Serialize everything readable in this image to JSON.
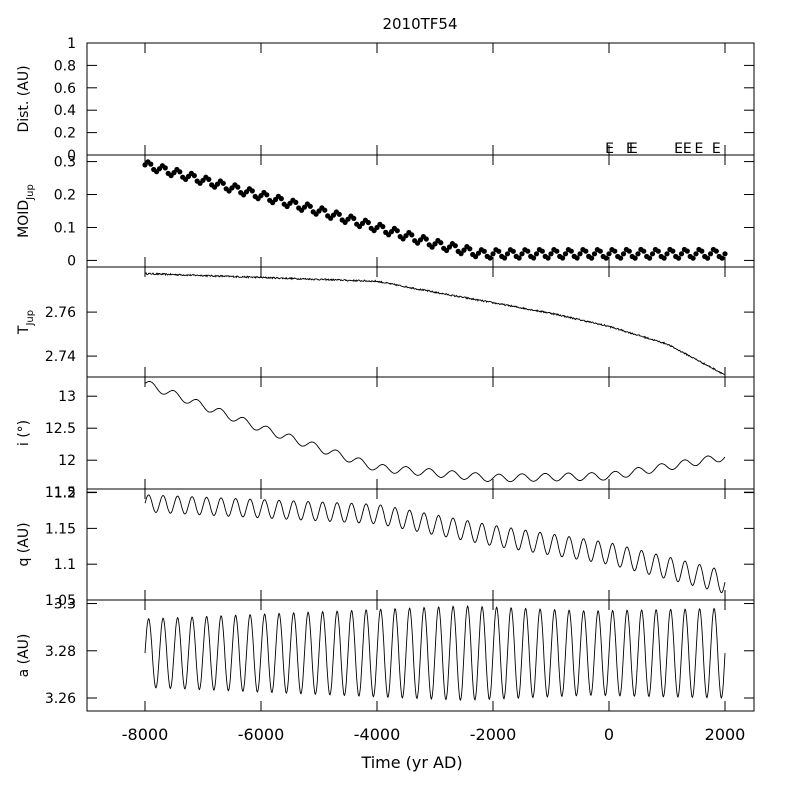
{
  "chart_data": {
    "type": "line",
    "title": "2010TF54",
    "xlabel": "Time (yr AD)",
    "xlim": [
      -9000,
      2500
    ],
    "x_ticks": [
      -8000,
      -6000,
      -4000,
      -2000,
      0,
      2000
    ],
    "x_tick_labels": [
      "-8000",
      "-6000",
      "-4000",
      "-2000",
      "0",
      "2000"
    ],
    "panels": [
      {
        "id": "dist",
        "ylabel": "Dist. (AU)",
        "ylim": [
          0,
          1
        ],
        "yticks": [
          0,
          0.2,
          0.4,
          0.6,
          0.8,
          1
        ],
        "ytick_labels": [
          "0",
          "0.2",
          "0.4",
          "0.6",
          "0.8",
          "1"
        ],
        "encounter_marker": "E",
        "encounters_x": [
          10,
          370,
          420,
          1200,
          1350,
          1550,
          1850
        ]
      },
      {
        "id": "moid",
        "ylabel_main": "MOID",
        "ylabel_sub": "Jup",
        "ylim": [
          -0.02,
          0.32
        ],
        "yticks": [
          0,
          0.1,
          0.2,
          0.3
        ],
        "ytick_labels": [
          "0",
          "0.1",
          "0.2",
          "0.3"
        ],
        "marker": "dot",
        "trend": {
          "x": [
            -8000,
            -5000,
            -3000,
            -2200,
            2000
          ],
          "y": [
            0.29,
            0.15,
            0.05,
            0.02,
            0.02
          ]
        },
        "oscillation": {
          "period": 250,
          "amp_start": 0.012,
          "amp_end": 0.014
        }
      },
      {
        "id": "tjup",
        "ylabel_main": "T",
        "ylabel_sub": "Jup",
        "ylim": [
          2.7305,
          2.7805
        ],
        "yticks": [
          2.74,
          2.76
        ],
        "ytick_labels": [
          "2.74",
          "2.76"
        ],
        "marker": "line",
        "trend": {
          "x": [
            -8000,
            -4000,
            -3000,
            -1000,
            0,
            1000,
            2000
          ],
          "y": [
            2.7775,
            2.774,
            2.769,
            2.7595,
            2.7535,
            2.7455,
            2.7315
          ]
        },
        "noise": 0.0007
      },
      {
        "id": "incl",
        "ylabel": "i (°)",
        "ylim": [
          11.55,
          13.3
        ],
        "yticks": [
          11.5,
          12,
          12.5,
          13
        ],
        "ytick_labels": [
          "11.5",
          "12",
          "12.5",
          "13"
        ],
        "marker": "line",
        "trend": {
          "x": [
            -8000,
            -6000,
            -4000,
            -2000,
            0,
            2000
          ],
          "y": [
            13.2,
            12.5,
            11.88,
            11.72,
            11.75,
            12.05
          ]
        },
        "oscillation": {
          "period": 400,
          "amp_start": 0.06,
          "amp_end": 0.06
        }
      },
      {
        "id": "q",
        "ylabel": "q (AU)",
        "ylim": [
          1.05,
          1.205
        ],
        "yticks": [
          1.05,
          1.1,
          1.15,
          1.2
        ],
        "ytick_labels": [
          "1.05",
          "1.1",
          "1.15",
          "1.2"
        ],
        "marker": "line",
        "trend": {
          "x": [
            -8000,
            -4000,
            -2000,
            0,
            2000
          ],
          "y": [
            1.185,
            1.17,
            1.14,
            1.115,
            1.075
          ]
        },
        "oscillation": {
          "period": 250,
          "amp_start": 0.012,
          "amp_end": 0.016
        }
      },
      {
        "id": "a",
        "ylabel": "a (AU)",
        "ylim": [
          3.2545,
          3.3015
        ],
        "yticks": [
          3.26,
          3.28,
          3.3
        ],
        "ytick_labels": [
          "3.26",
          "3.28",
          "3.3"
        ],
        "marker": "line",
        "trend": {
          "x": [
            -8000,
            2000
          ],
          "y": [
            3.279,
            3.279
          ]
        },
        "oscillation": {
          "period": 250,
          "amp_start": 0.014,
          "amp_end": 0.019,
          "amp_peak_at": -2500,
          "amp_peak": 0.02
        }
      }
    ]
  }
}
